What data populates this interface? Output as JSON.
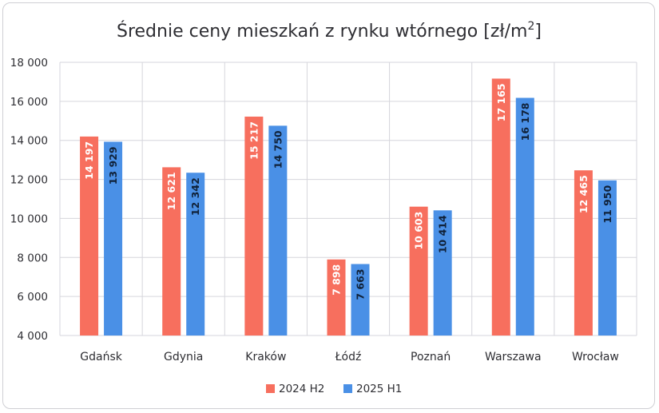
{
  "chart_data": {
    "type": "bar",
    "title": "Średnie ceny mieszkań z rynku wtórnego [zł/m²]",
    "title_main": "Średnie ceny mieszkań z rynku wtórnego [zł/m",
    "title_sup": "2",
    "title_end": "]",
    "categories": [
      "Gdańsk",
      "Gdynia",
      "Kraków",
      "Łódź",
      "Poznań",
      "Warszawa",
      "Wrocław"
    ],
    "series": [
      {
        "name": "2024 H2",
        "color": "#f76f5e",
        "label_color": "#ffffff",
        "values": [
          14197,
          12621,
          15217,
          7898,
          10603,
          17165,
          12465
        ],
        "labels": [
          "14 197",
          "12 621",
          "15 217",
          "7 898",
          "10 603",
          "17 165",
          "12 465"
        ]
      },
      {
        "name": "2025 H1",
        "color": "#4a90e6",
        "label_color": "#10223a",
        "values": [
          13929,
          12342,
          14750,
          7663,
          10414,
          16178,
          11950
        ],
        "labels": [
          "13 929",
          "12 342",
          "14 750",
          "7 663",
          "10 414",
          "16 178",
          "11 950"
        ]
      }
    ],
    "ylim": [
      4000,
      18000
    ],
    "yticks": [
      4000,
      6000,
      8000,
      10000,
      12000,
      14000,
      16000,
      18000
    ],
    "ytick_labels": [
      "4 000",
      "6 000",
      "8 000",
      "10 000",
      "12 000",
      "14 000",
      "16 000",
      "18 000"
    ],
    "grid": true,
    "legend_position": "bottom"
  }
}
